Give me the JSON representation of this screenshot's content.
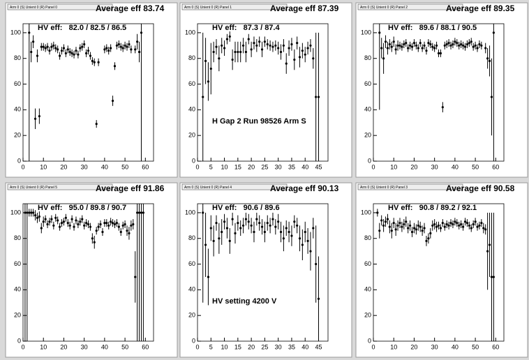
{
  "chart_data": [
    {
      "type": "scatter",
      "header": "Arm 0 (S) Unient 0 (R) Panel 0",
      "title": "Average eff 83.74",
      "subtitle": "HV eff:   82.0 / 82.5 / 86.5",
      "x": [
        3,
        4,
        5,
        6,
        7,
        8,
        9,
        10,
        11,
        12,
        13,
        14,
        15,
        16,
        17,
        18,
        19,
        20,
        21,
        22,
        23,
        24,
        25,
        26,
        27,
        28,
        29,
        30,
        31,
        32,
        33,
        34,
        35,
        36,
        37,
        40,
        41,
        42,
        43,
        44,
        45,
        46,
        47,
        48,
        49,
        50,
        51,
        52,
        53,
        55,
        56,
        57,
        58
      ],
      "y": [
        100,
        85,
        93,
        33,
        82,
        35,
        89,
        89,
        88,
        89,
        86,
        89,
        90,
        88,
        87,
        82,
        86,
        88,
        84,
        87,
        85,
        84,
        83,
        86,
        83,
        88,
        89,
        91,
        84,
        86,
        82,
        78,
        77,
        29,
        77,
        87,
        88,
        86,
        88,
        47,
        74,
        90,
        91,
        89,
        88,
        90,
        89,
        91,
        87,
        87,
        93,
        85,
        100
      ],
      "yerr": [
        100,
        8,
        5,
        8,
        5,
        6,
        3,
        3,
        3,
        3,
        3,
        3,
        3,
        3,
        3,
        3,
        3,
        3,
        3,
        3,
        3,
        3,
        3,
        3,
        3,
        3,
        3,
        3,
        3,
        3,
        3,
        3,
        3,
        3,
        3,
        3,
        3,
        3,
        3,
        4,
        3,
        3,
        3,
        3,
        3,
        3,
        3,
        3,
        3,
        3,
        6,
        8,
        100
      ],
      "xlim": [
        0,
        64
      ],
      "ylim": [
        0,
        107
      ],
      "xticks": [
        0,
        10,
        20,
        30,
        40,
        50,
        60
      ],
      "yticks": [
        0,
        20,
        40,
        60,
        80,
        100
      ],
      "color": "#000000"
    },
    {
      "type": "scatter",
      "header": "Arm 0 (S) Unient 0 (R) Panel 1",
      "title": "Average eff 87.39",
      "subtitle": "HV eff:   87.3 / 87.4",
      "annotation": "H Gap 2 Run 98526 Arm S",
      "x": [
        2,
        3,
        4,
        5,
        6,
        7,
        8,
        9,
        10,
        11,
        12,
        13,
        14,
        15,
        16,
        17,
        18,
        19,
        20,
        21,
        22,
        23,
        24,
        25,
        26,
        27,
        28,
        29,
        30,
        31,
        32,
        33,
        34,
        35,
        36,
        37,
        38,
        39,
        40,
        41,
        42,
        43,
        44,
        45
      ],
      "y": [
        50,
        78,
        62,
        72,
        85,
        89,
        80,
        90,
        88,
        95,
        97,
        79,
        85,
        85,
        85,
        90,
        85,
        95,
        87,
        92,
        90,
        93,
        87,
        93,
        91,
        90,
        89,
        90,
        88,
        85,
        90,
        76,
        88,
        91,
        79,
        92,
        81,
        86,
        83,
        88,
        90,
        80,
        50,
        50
      ],
      "yerr": [
        50,
        18,
        15,
        20,
        8,
        6,
        10,
        6,
        6,
        4,
        4,
        8,
        8,
        8,
        8,
        6,
        8,
        4,
        6,
        5,
        5,
        4,
        6,
        4,
        4,
        4,
        4,
        4,
        5,
        6,
        5,
        8,
        6,
        5,
        8,
        5,
        8,
        6,
        6,
        5,
        5,
        8,
        50,
        50
      ],
      "xlim": [
        0,
        48.5
      ],
      "ylim": [
        0,
        107
      ],
      "xticks": [
        0,
        5,
        10,
        15,
        20,
        25,
        30,
        35,
        40,
        45
      ],
      "yticks": [
        0,
        20,
        40,
        60,
        80,
        100
      ],
      "color": "#000000"
    },
    {
      "type": "scatter",
      "header": "Arm 0 (S) Unient 0 (R) Panel 2",
      "title": "Average eff 89.35",
      "subtitle": "HV eff:   89.6 / 88.1 / 90.5",
      "x": [
        3,
        4,
        5,
        6,
        7,
        8,
        9,
        10,
        11,
        12,
        13,
        14,
        15,
        16,
        17,
        18,
        19,
        20,
        21,
        22,
        23,
        24,
        25,
        26,
        27,
        28,
        29,
        30,
        31,
        32,
        33,
        34,
        35,
        36,
        37,
        38,
        39,
        40,
        41,
        42,
        43,
        44,
        45,
        46,
        47,
        48,
        49,
        50,
        51,
        52,
        53,
        55,
        56,
        57,
        58,
        59
      ],
      "y": [
        100,
        88,
        80,
        93,
        88,
        91,
        89,
        93,
        87,
        90,
        90,
        89,
        91,
        92,
        88,
        90,
        89,
        92,
        90,
        88,
        92,
        88,
        90,
        86,
        92,
        91,
        89,
        88,
        90,
        84,
        84,
        42,
        90,
        91,
        92,
        90,
        91,
        93,
        92,
        90,
        91,
        90,
        89,
        91,
        92,
        93,
        89,
        90,
        88,
        91,
        90,
        88,
        80,
        78,
        50,
        100
      ],
      "yerr": [
        60,
        8,
        12,
        5,
        5,
        4,
        4,
        4,
        4,
        4,
        3,
        3,
        3,
        3,
        3,
        3,
        3,
        3,
        3,
        3,
        3,
        3,
        3,
        3,
        3,
        3,
        3,
        3,
        3,
        3,
        3,
        4,
        3,
        3,
        3,
        3,
        3,
        3,
        3,
        3,
        3,
        3,
        3,
        3,
        3,
        3,
        3,
        3,
        3,
        3,
        3,
        4,
        8,
        12,
        30,
        100
      ],
      "xlim": [
        0,
        64
      ],
      "ylim": [
        0,
        107
      ],
      "xticks": [
        0,
        10,
        20,
        30,
        40,
        50,
        60
      ],
      "yticks": [
        0,
        20,
        40,
        60,
        80,
        100
      ],
      "color": "#000000"
    },
    {
      "type": "scatter",
      "header": "Arm 0 (S) Unient 0 (R) Panel 5",
      "title": "Average eff 91.86",
      "subtitle": "HV eff:   95.0 / 89.8 / 90.7",
      "x": [
        1,
        2,
        3,
        4,
        5,
        6,
        7,
        8,
        9,
        10,
        11,
        12,
        13,
        14,
        15,
        16,
        17,
        18,
        19,
        20,
        21,
        22,
        23,
        24,
        25,
        26,
        27,
        28,
        29,
        30,
        31,
        32,
        33,
        34,
        35,
        36,
        37,
        38,
        39,
        40,
        41,
        42,
        43,
        44,
        45,
        46,
        47,
        48,
        49,
        50,
        51,
        52,
        53,
        54,
        55,
        56,
        57,
        58,
        59
      ],
      "y": [
        100,
        100,
        100,
        100,
        100,
        98,
        96,
        97,
        88,
        93,
        95,
        91,
        93,
        95,
        90,
        96,
        94,
        89,
        92,
        93,
        96,
        92,
        90,
        95,
        89,
        94,
        91,
        93,
        95,
        90,
        92,
        91,
        89,
        80,
        77,
        86,
        89,
        91,
        85,
        92,
        92,
        90,
        93,
        92,
        91,
        92,
        89,
        85,
        90,
        91,
        86,
        84,
        90,
        91,
        50,
        100,
        100,
        100,
        100
      ],
      "yerr": [
        100,
        100,
        3,
        3,
        3,
        4,
        4,
        4,
        4,
        4,
        3,
        3,
        3,
        3,
        3,
        3,
        3,
        3,
        3,
        3,
        3,
        3,
        3,
        3,
        3,
        3,
        3,
        3,
        3,
        3,
        3,
        3,
        3,
        4,
        5,
        3,
        3,
        3,
        3,
        3,
        3,
        3,
        3,
        3,
        3,
        3,
        3,
        3,
        3,
        3,
        4,
        5,
        4,
        4,
        20,
        100,
        100,
        100,
        100
      ],
      "xlim": [
        0,
        64
      ],
      "ylim": [
        0,
        107
      ],
      "xticks": [
        0,
        10,
        20,
        30,
        40,
        50,
        60
      ],
      "yticks": [
        0,
        20,
        40,
        60,
        80,
        100
      ],
      "color": "#000000"
    },
    {
      "type": "scatter",
      "header": "Arm 0 (S) Unient 0 (R) Panel 4",
      "title": "Average eff 90.13",
      "subtitle": "HV eff:   90.6 / 89.6",
      "annotation": "HV setting 4200 V",
      "x": [
        2,
        3,
        4,
        5,
        6,
        7,
        8,
        9,
        10,
        11,
        12,
        13,
        14,
        15,
        16,
        17,
        18,
        19,
        20,
        21,
        22,
        23,
        24,
        25,
        26,
        27,
        28,
        29,
        30,
        31,
        32,
        33,
        34,
        35,
        36,
        37,
        38,
        39,
        40,
        41,
        42,
        43,
        44,
        45
      ],
      "y": [
        100,
        75,
        50,
        88,
        78,
        92,
        80,
        85,
        93,
        88,
        78,
        95,
        84,
        92,
        88,
        90,
        95,
        93,
        90,
        85,
        95,
        92,
        89,
        85,
        92,
        90,
        95,
        89,
        93,
        85,
        80,
        88,
        85,
        82,
        93,
        90,
        80,
        75,
        85,
        78,
        70,
        88,
        60,
        33
      ],
      "yerr": [
        70,
        25,
        22,
        10,
        12,
        6,
        12,
        10,
        6,
        8,
        10,
        5,
        8,
        6,
        6,
        6,
        5,
        6,
        6,
        8,
        5,
        6,
        6,
        8,
        6,
        6,
        5,
        6,
        6,
        8,
        10,
        6,
        8,
        8,
        5,
        6,
        10,
        12,
        8,
        10,
        15,
        8,
        30,
        33
      ],
      "xlim": [
        0,
        48.5
      ],
      "ylim": [
        0,
        107
      ],
      "xticks": [
        0,
        5,
        10,
        15,
        20,
        25,
        30,
        35,
        40,
        45
      ],
      "yticks": [
        0,
        20,
        40,
        60,
        80,
        100
      ],
      "color": "#000000"
    },
    {
      "type": "scatter",
      "header": "Arm 0 (S) Unient 0 (R) Panel 3",
      "title": "Average eff 90.58",
      "subtitle": "HV eff:   90.8 / 89.2 / 92.1",
      "x": [
        2,
        3,
        4,
        5,
        6,
        7,
        8,
        9,
        10,
        11,
        12,
        13,
        14,
        15,
        16,
        17,
        18,
        19,
        20,
        21,
        22,
        23,
        24,
        25,
        26,
        27,
        28,
        29,
        30,
        31,
        32,
        33,
        34,
        35,
        36,
        37,
        38,
        39,
        40,
        41,
        42,
        43,
        44,
        45,
        46,
        47,
        48,
        49,
        50,
        51,
        52,
        53,
        54,
        55,
        56,
        57,
        58,
        59
      ],
      "y": [
        100,
        86,
        94,
        90,
        93,
        95,
        89,
        86,
        92,
        87,
        90,
        92,
        89,
        91,
        93,
        88,
        90,
        85,
        88,
        87,
        90,
        89,
        86,
        88,
        78,
        80,
        84,
        90,
        91,
        89,
        90,
        88,
        92,
        89,
        91,
        90,
        92,
        91,
        93,
        92,
        90,
        91,
        89,
        93,
        92,
        90,
        88,
        91,
        93,
        89,
        90,
        92,
        88,
        87,
        70,
        75,
        50,
        50
      ],
      "yerr": [
        3,
        6,
        4,
        5,
        4,
        4,
        5,
        6,
        4,
        5,
        4,
        4,
        4,
        4,
        4,
        4,
        4,
        4,
        4,
        4,
        4,
        4,
        4,
        4,
        4,
        4,
        4,
        4,
        4,
        4,
        3,
        3,
        3,
        3,
        3,
        3,
        3,
        3,
        3,
        3,
        3,
        3,
        3,
        3,
        3,
        3,
        3,
        3,
        3,
        3,
        3,
        3,
        4,
        4,
        30,
        25,
        50,
        50
      ],
      "xlim": [
        0,
        64
      ],
      "ylim": [
        0,
        107
      ],
      "xticks": [
        0,
        10,
        20,
        30,
        40,
        50,
        60
      ],
      "yticks": [
        0,
        20,
        40,
        60,
        80,
        100
      ],
      "color": "#000000"
    }
  ]
}
